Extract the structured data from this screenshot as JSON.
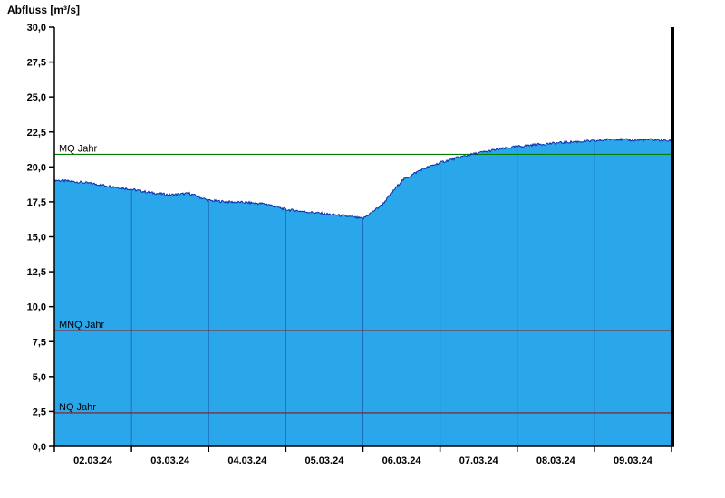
{
  "title": "Abfluss [m³/s]",
  "chart_data": {
    "type": "area",
    "title": "Abfluss [m³/s]",
    "ylabel": "Abfluss [m³/s]",
    "xlabel": "",
    "ylim": [
      0,
      30
    ],
    "ytick_step": 2.5,
    "ytick_labels": [
      "0,0",
      "2,5",
      "5,0",
      "7,5",
      "10,0",
      "12,5",
      "15,0",
      "17,5",
      "20,0",
      "22,5",
      "25,0",
      "27,5",
      "30,0"
    ],
    "categories": [
      "02.03.24",
      "03.03.24",
      "04.03.24",
      "05.03.24",
      "06.03.24",
      "07.03.24",
      "08.03.24",
      "09.03.24"
    ],
    "series_name": "Abfluss",
    "x_days": [
      0,
      0.25,
      0.5,
      0.75,
      1,
      1.25,
      1.5,
      1.75,
      2,
      2.25,
      2.5,
      2.75,
      3,
      3.25,
      3.5,
      3.75,
      4,
      4.25,
      4.5,
      4.75,
      5,
      5.25,
      5.5,
      5.75,
      6,
      6.25,
      6.5,
      6.75,
      7,
      7.25,
      7.5,
      7.75,
      8
    ],
    "values": [
      19.05,
      18.95,
      18.8,
      18.6,
      18.4,
      18.15,
      18.0,
      18.1,
      17.6,
      17.5,
      17.45,
      17.35,
      16.95,
      16.8,
      16.65,
      16.5,
      16.3,
      17.3,
      19.0,
      19.8,
      20.3,
      20.7,
      21.0,
      21.25,
      21.45,
      21.6,
      21.7,
      21.8,
      21.85,
      22.0,
      21.9,
      21.95,
      21.85
    ],
    "reference_lines": [
      {
        "label": "MQ Jahr",
        "value": 20.9,
        "color": "#008000"
      },
      {
        "label": "MNQ Jahr",
        "value": 8.3,
        "color": "#8b1a1a"
      },
      {
        "label": "NQ Jahr",
        "value": 2.4,
        "color": "#8b1a1a"
      }
    ],
    "colors": {
      "fill": "#29a7ea",
      "line": "#0a2fa8",
      "grid": "#1b6fb8",
      "axis": "#000000"
    },
    "legend_position": "none",
    "grid": "vertical-day-lines-inside-area"
  }
}
